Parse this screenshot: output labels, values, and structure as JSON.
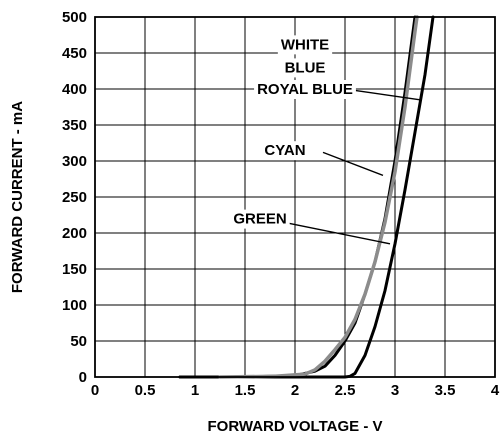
{
  "chart_data": {
    "type": "line",
    "title": "",
    "xlabel": "FORWARD VOLTAGE - V",
    "ylabel": "FORWARD CURRENT - mA",
    "xlim": [
      0,
      4
    ],
    "ylim": [
      0,
      500
    ],
    "x_ticks": [
      "0",
      "0.5",
      "1",
      "1.5",
      "2",
      "2.5",
      "3",
      "3.5",
      "4"
    ],
    "y_ticks": [
      "0",
      "50",
      "100",
      "150",
      "200",
      "250",
      "300",
      "350",
      "400",
      "450",
      "500"
    ],
    "grid": true,
    "series": [
      {
        "name": "WHITE / BLUE / ROYAL BLUE",
        "color": "#000000",
        "points": [
          [
            0.85,
            0
          ],
          [
            1.5,
            0
          ],
          [
            2.0,
            2
          ],
          [
            2.2,
            8
          ],
          [
            2.3,
            15
          ],
          [
            2.4,
            30
          ],
          [
            2.5,
            50
          ],
          [
            2.6,
            75
          ],
          [
            2.7,
            115
          ],
          [
            2.8,
            160
          ],
          [
            2.9,
            220
          ],
          [
            3.0,
            300
          ],
          [
            3.1,
            395
          ],
          [
            3.2,
            500
          ]
        ]
      },
      {
        "name": "CYAN",
        "color": "#000000",
        "points": [
          [
            0.85,
            0
          ],
          [
            2.5,
            0
          ],
          [
            2.55,
            1
          ],
          [
            2.6,
            5
          ],
          [
            2.7,
            30
          ],
          [
            2.8,
            70
          ],
          [
            2.9,
            120
          ],
          [
            3.0,
            185
          ],
          [
            3.1,
            260
          ],
          [
            3.2,
            340
          ],
          [
            3.3,
            420
          ],
          [
            3.38,
            500
          ]
        ]
      },
      {
        "name": "GREEN",
        "color": "#8c8c8c",
        "points": [
          [
            1.25,
            0
          ],
          [
            1.8,
            1
          ],
          [
            2.1,
            4
          ],
          [
            2.2,
            10
          ],
          [
            2.3,
            22
          ],
          [
            2.4,
            38
          ],
          [
            2.5,
            55
          ],
          [
            2.6,
            80
          ],
          [
            2.7,
            115
          ],
          [
            2.8,
            160
          ],
          [
            2.9,
            215
          ],
          [
            3.0,
            285
          ],
          [
            3.1,
            375
          ],
          [
            3.2,
            480
          ],
          [
            3.22,
            500
          ]
        ]
      }
    ],
    "annotations": [
      {
        "text": "WHITE",
        "x": 2.1,
        "y": 462
      },
      {
        "text": "BLUE",
        "x": 2.1,
        "y": 430
      },
      {
        "text": "ROYAL BLUE",
        "x": 2.1,
        "y": 400
      },
      {
        "text": "CYAN",
        "x": 1.9,
        "y": 315
      },
      {
        "text": "GREEN",
        "x": 1.65,
        "y": 220
      }
    ]
  }
}
